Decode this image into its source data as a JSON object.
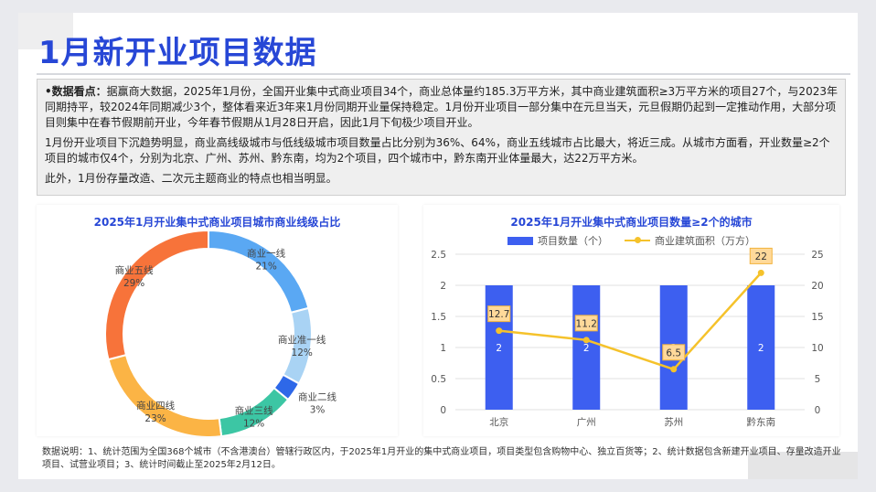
{
  "page": {
    "title": "1月新开业项目数据",
    "summary": {
      "lead": "•数据看点：",
      "p1": "据赢商大数据，2025年1月份，全国开业集中式商业项目34个，商业总体量约185.3万平方米，其中商业建筑面积≥3万平方米的项目27个，与2023年同期持平，较2024年同期减少3个，整体看来近3年来1月份同期开业量保持稳定。1月份开业项目一部分集中在元旦当天，元旦假期仍起到一定推动作用，大部分项目则集中在春节假期前开业，今年春节假期从1月28日开启，因此1月下旬极少项目开业。",
      "p2": "1月份开业项目下沉趋势明显，商业高线级城市与低线级城市项目数量占比分别为36%、64%，商业五线城市占比最大，将近三成。从城市方面看，开业数量≥2个项目的城市仅4个，分别为北京、广州、苏州、黔东南，均为2个项目，四个城市中，黔东南开业体量最大，达22万平方米。",
      "p3": "此外，1月份存量改造、二次元主题商业的特点也相当明显。"
    },
    "footnote": "数据说明：1、统计范围为全国368个城市（不含港澳台）管辖行政区内，于2025年1月开业的集中式商业项目，项目类型包含购物中心、独立百货等；2、统计数据包含新建开业项目、存量改造开业项目、试营业项目；3、统计时间截止至2025年2月12日。",
    "colors": {
      "accent": "#2747d6",
      "bar": "#3d5ff0",
      "line": "#f5c22b"
    }
  },
  "chart_data": [
    {
      "type": "pie",
      "variant": "donut",
      "title": "2025年1月开业集中式商业项目城市商业线级占比",
      "slices": [
        {
          "label": "商业一线",
          "value": 21,
          "display": "21%",
          "color": "#5aa8f3"
        },
        {
          "label": "商业准一线",
          "value": 12,
          "display": "12%",
          "color": "#a9d3f4"
        },
        {
          "label": "商业二线",
          "value": 3,
          "display": "3%",
          "color": "#2e68e8"
        },
        {
          "label": "商业三线",
          "value": 12,
          "display": "12%",
          "color": "#3cc6a4"
        },
        {
          "label": "商业四线",
          "value": 23,
          "display": "23%",
          "color": "#fbb445"
        },
        {
          "label": "商业五线",
          "value": 29,
          "display": "29%",
          "color": "#f7733a"
        }
      ]
    },
    {
      "type": "bar",
      "title": "2025年1月开业集中式商业项目数量≥2个的城市",
      "categories": [
        "北京",
        "广州",
        "苏州",
        "黔东南"
      ],
      "series": [
        {
          "name": "项目数量（个）",
          "type": "bar",
          "axis": "left",
          "values": [
            2,
            2,
            2,
            2
          ],
          "color": "#3d5ff0"
        },
        {
          "name": "商业建筑面积（万方）",
          "type": "line",
          "axis": "right",
          "values": [
            12.7,
            11.2,
            6.5,
            22
          ],
          "color": "#f5c22b"
        }
      ],
      "y_left": {
        "min": 0,
        "max": 2.5,
        "ticks": [
          "0",
          "0.5",
          "1",
          "1.5",
          "2",
          "2.5"
        ]
      },
      "y_right": {
        "min": 0,
        "max": 25,
        "ticks": [
          "0",
          "5",
          "10",
          "15",
          "20",
          "25"
        ]
      },
      "legend_position": "top",
      "grid": true
    }
  ]
}
